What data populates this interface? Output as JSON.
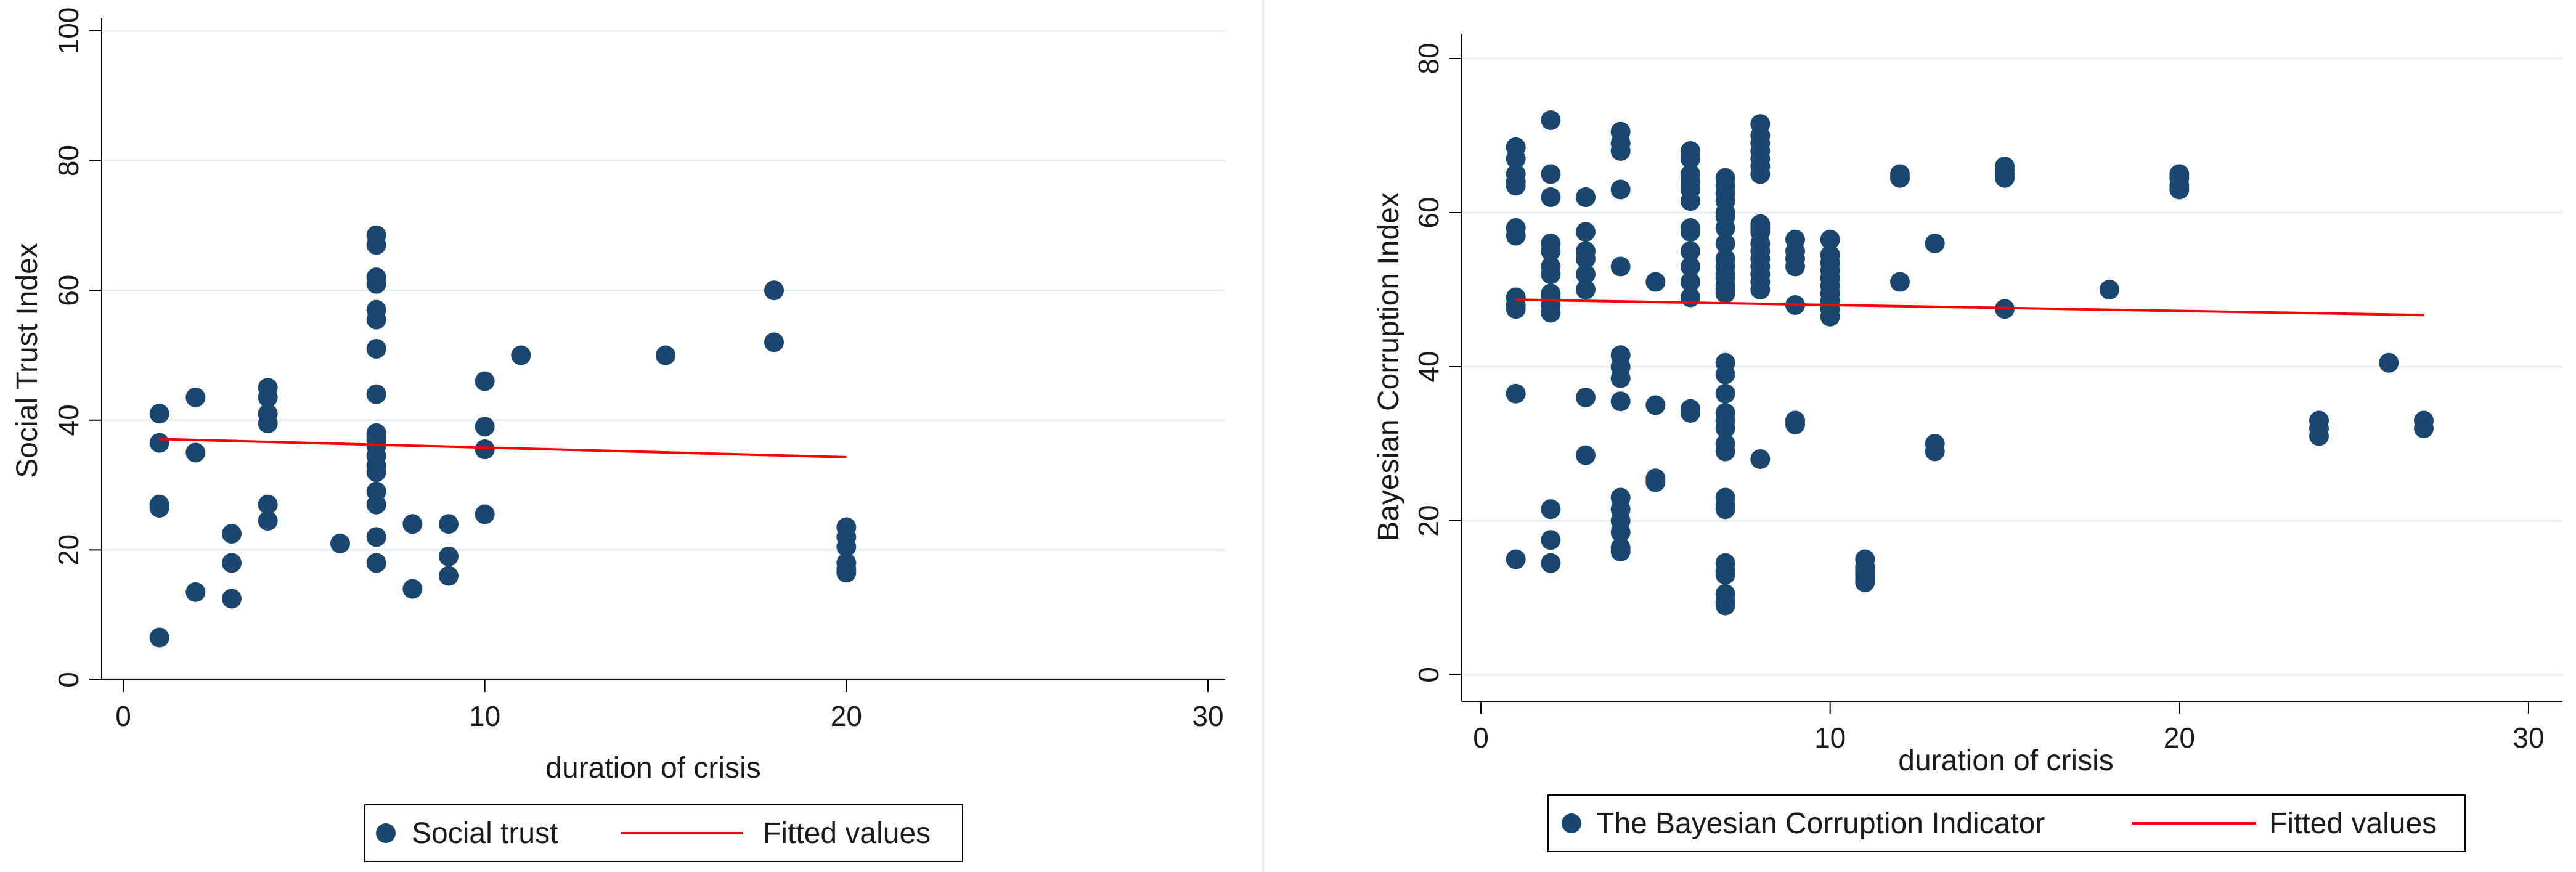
{
  "chart_data": [
    {
      "type": "scatter",
      "xlabel": "duration of crisis",
      "ylabel": "Social Trust Index",
      "xlim": [
        0,
        30
      ],
      "ylim": [
        0,
        100
      ],
      "xticks": [
        "0",
        "10",
        "20",
        "30"
      ],
      "yticks": [
        "0",
        "20",
        "40",
        "60",
        "80",
        "100"
      ],
      "grid": true,
      "legend": {
        "placement": "bottom-center",
        "entries": [
          "Social trust",
          "Fitted values"
        ]
      },
      "colors": {
        "points": "#1a476f",
        "fit": "#ff0000",
        "grid": "#e6eef3",
        "axis": "#000000"
      },
      "series": [
        {
          "name": "Social trust",
          "kind": "scatter",
          "x": [
            1,
            1,
            1,
            1,
            1,
            2,
            2,
            2,
            3,
            3,
            3,
            4,
            4,
            4,
            4,
            4,
            4,
            6,
            7,
            7,
            7,
            7,
            7,
            7,
            7,
            7,
            7,
            7,
            7,
            7,
            7,
            7,
            7,
            7,
            7,
            7,
            7,
            7,
            8,
            8,
            9,
            9,
            9,
            10,
            10,
            10,
            10,
            10,
            11,
            15,
            18,
            18,
            20,
            20,
            20,
            20,
            20,
            20
          ],
          "y": [
            6.5,
            26.5,
            27,
            36.5,
            41,
            13.5,
            35,
            43.5,
            12.5,
            18,
            22.5,
            24.5,
            27,
            39.5,
            41,
            43.5,
            45,
            21,
            18,
            22,
            27,
            29,
            32,
            33,
            34.5,
            36,
            37,
            38,
            44,
            51,
            55.5,
            57,
            61,
            62,
            67,
            68.5,
            37.5,
            34.5,
            14,
            24,
            16,
            19,
            24,
            25.5,
            35.5,
            35.5,
            39,
            46,
            50,
            50,
            52,
            60,
            16.5,
            18,
            20.5,
            22,
            23.5,
            17
          ]
        },
        {
          "name": "Fitted values",
          "kind": "line",
          "x": [
            1,
            20
          ],
          "y": [
            37.1,
            34.3
          ]
        }
      ]
    },
    {
      "type": "scatter",
      "xlabel": "duration of crisis",
      "ylabel": "Bayesian Corruption Index",
      "xlim": [
        0,
        30
      ],
      "ylim": [
        0,
        80
      ],
      "xticks": [
        "0",
        "10",
        "20",
        "30"
      ],
      "yticks": [
        "0",
        "20",
        "40",
        "60",
        "80"
      ],
      "grid": true,
      "legend": {
        "placement": "bottom-center",
        "entries": [
          "The Bayesian Corruption Indicator",
          "Fitted values"
        ]
      },
      "colors": {
        "points": "#1a476f",
        "fit": "#ff0000",
        "grid": "#e6eef3",
        "axis": "#000000"
      },
      "series": [
        {
          "name": "The Bayesian Corruption Indicator",
          "kind": "scatter",
          "x": [
            1,
            1,
            1,
            1,
            1,
            1,
            1,
            1,
            1,
            1,
            1,
            1,
            2,
            2,
            2,
            2,
            2,
            2,
            2,
            2,
            2,
            2,
            2,
            2,
            2,
            2,
            3,
            3,
            3,
            3,
            3,
            3,
            3,
            3,
            3,
            4,
            4,
            4,
            4,
            4,
            4,
            4,
            4,
            4,
            4,
            4,
            4,
            4,
            4,
            4,
            5,
            5,
            5,
            5,
            6,
            6,
            6,
            6,
            6,
            6,
            6,
            6,
            6,
            6,
            6,
            6,
            6,
            6,
            7,
            7,
            7,
            7,
            7,
            7,
            7,
            7,
            7,
            7,
            7,
            7,
            7,
            7,
            7,
            7,
            7,
            7,
            7,
            7,
            7,
            7,
            7,
            7,
            7,
            7,
            7,
            7,
            7,
            7,
            7,
            7,
            8,
            8,
            8,
            8,
            8,
            8,
            8,
            8,
            8,
            8,
            8,
            8,
            8,
            8,
            8,
            8,
            8,
            8,
            9,
            9,
            9,
            9,
            9,
            9,
            9,
            10,
            10,
            10,
            10,
            10,
            10,
            10,
            10,
            10,
            10,
            11,
            11,
            11,
            11,
            11,
            11,
            12,
            12,
            12,
            13,
            13,
            13,
            15,
            15,
            15,
            15,
            15,
            18,
            20,
            20,
            20,
            20,
            24,
            24,
            24,
            26,
            27,
            27
          ],
          "y": [
            68.5,
            67,
            65,
            64,
            63.5,
            58,
            57,
            49,
            48,
            47.5,
            36.5,
            15,
            72,
            65,
            62,
            56,
            55,
            53,
            52,
            49.5,
            49,
            48,
            47,
            21.5,
            17.5,
            14.5,
            62,
            57.5,
            55,
            54,
            52,
            50,
            36,
            28.5,
            62,
            70.5,
            69,
            68,
            63,
            53,
            41.5,
            40,
            38.5,
            35.5,
            23,
            21.5,
            20,
            18.5,
            16.5,
            16,
            51,
            35,
            25.5,
            25,
            68,
            67,
            65,
            64,
            63,
            61.5,
            58,
            57.5,
            55,
            53,
            51,
            49,
            34.5,
            34,
            64.5,
            63.5,
            62.5,
            61.5,
            60,
            59.5,
            58,
            56,
            54,
            53,
            52,
            51.5,
            50.5,
            50,
            49.5,
            40.5,
            39,
            36.5,
            34,
            33,
            32,
            30,
            29,
            23,
            22,
            21.5,
            14.5,
            13.5,
            13,
            10.5,
            9.5,
            9,
            71.5,
            70,
            69,
            68,
            67,
            66,
            65,
            58.5,
            58,
            57.5,
            56,
            55,
            54,
            53,
            52,
            51,
            50,
            28,
            56.5,
            55,
            54,
            53,
            48,
            33,
            32.5,
            56.5,
            54.5,
            53.5,
            52.5,
            51.5,
            50.5,
            49.5,
            48.5,
            47.5,
            46.5,
            15,
            14,
            13.5,
            13,
            12.5,
            12,
            65,
            64.5,
            51,
            56,
            30,
            29,
            66,
            65.5,
            65,
            64.5,
            47.5,
            50,
            65,
            64.5,
            63.5,
            63,
            33,
            32,
            31,
            40.5,
            33,
            32
          ]
        },
        {
          "name": "Fitted values",
          "kind": "line",
          "x": [
            1,
            27
          ],
          "y": [
            48.7,
            46.7
          ]
        }
      ]
    }
  ]
}
